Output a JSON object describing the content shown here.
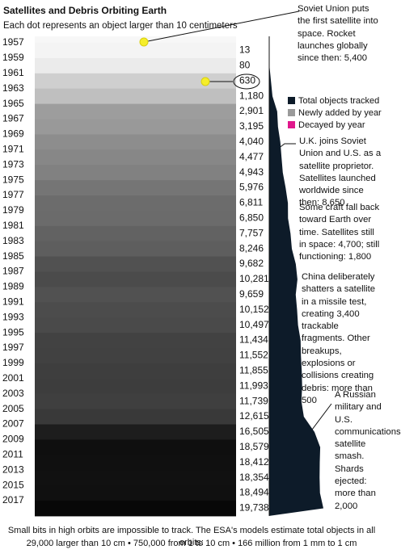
{
  "chart_data": {
    "type": "dot-density",
    "title": "Satellites and Debris Orbiting Earth",
    "subtitle": "Each dot represents an object larger than 10 centimeters",
    "categories": [
      "1957",
      "1959",
      "1961",
      "1963",
      "1965",
      "1967",
      "1969",
      "1971",
      "1973",
      "1975",
      "1977",
      "1979",
      "1981",
      "1983",
      "1985",
      "1987",
      "1989",
      "1991",
      "1993",
      "1995",
      "1997",
      "1999",
      "2001",
      "2003",
      "2005",
      "2007",
      "2009",
      "2011",
      "2013",
      "2015",
      "2017"
    ],
    "values": [
      13,
      80,
      630,
      1180,
      2901,
      3195,
      4040,
      4477,
      4943,
      5976,
      6811,
      6850,
      7757,
      8246,
      9682,
      10281,
      9659,
      10152,
      10497,
      11434,
      11552,
      11855,
      11993,
      11739,
      12615,
      16505,
      18579,
      18412,
      18354,
      18494,
      19738
    ],
    "value_labels": [
      "13",
      "80",
      "630",
      "1,180",
      "2,901",
      "3,195",
      "4,040",
      "4,477",
      "4,943",
      "5,976",
      "6,811",
      "6,850",
      "7,757",
      "8,246",
      "9,682",
      "10,281",
      "9,659",
      "10,152",
      "10,497",
      "11,434",
      "11,552",
      "11,855",
      "11,993",
      "11,739",
      "12,615",
      "16,505",
      "18,579",
      "18,412",
      "18,354",
      "18,494",
      "19,738"
    ],
    "series": [
      {
        "name": "Total objects tracked",
        "color": "#0d1b29"
      },
      {
        "name": "Newly added by year",
        "color": "#9a9a9a"
      },
      {
        "name": "Decayed by year",
        "color": "#e0178c"
      }
    ],
    "annotations": [
      "Soviet Union puts the first satellite into space. Rocket launches globally since then: 5,400",
      "U.K. joins Soviet Union and U.S. as a satellite proprietor. Satellites launched worldwide since then: 8,650",
      "Some craft fall back toward Earth over time. Satellites still in space: 4,700; still functioning: 1,800",
      "China deliberately shatters a satellite in a missile test, creating 3,400 trackable fragments. Other breakups, explosions or collisions creating debris: more than 500",
      "A Russian military and U.S. communications satellite smash. Shards ejected: more than 2,000"
    ],
    "footer": [
      "Small bits in high orbits are impossible to track. The ESA's models estimate total objects in all orbits:",
      "29,000 larger than 10 cm • 750,000 from 1 to 10 cm • 166 million from 1 mm to 1 cm"
    ]
  }
}
